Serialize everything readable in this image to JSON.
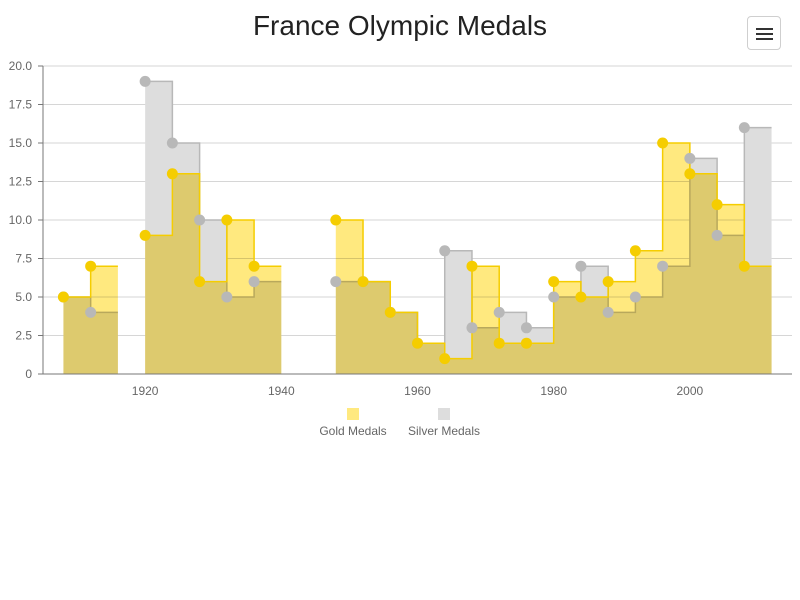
{
  "header": {
    "title": "France Olympic Medals",
    "menu_icon": "hamburger-menu-icon"
  },
  "colors": {
    "gold": "#f5cd00",
    "gold_fill": "#ffe97f",
    "silver": "#b8b8b8",
    "silver_fill": "#dddddd",
    "grid": "#d6d6d6",
    "axis": "#777777"
  },
  "chart_data": {
    "type": "area",
    "step": true,
    "title": "France Olympic Medals",
    "xlabel": "",
    "ylabel": "",
    "xlim": [
      1905,
      2015
    ],
    "ylim": [
      0,
      20
    ],
    "yticks": [
      "0",
      "2.5",
      "5.0",
      "7.5",
      "10.0",
      "12.5",
      "15.0",
      "17.5",
      "20.0"
    ],
    "xticks": [
      "1920",
      "1940",
      "1960",
      "1980",
      "2000"
    ],
    "grid": true,
    "legend": "bottom-center",
    "series": [
      {
        "name": "Gold Medals",
        "segments": [
          {
            "x": [
              1908,
              1912
            ],
            "y": [
              5,
              7
            ]
          },
          {
            "x": [
              1920,
              1924,
              1928,
              1932,
              1936
            ],
            "y": [
              9,
              13,
              6,
              10,
              7
            ]
          },
          {
            "x": [
              1948,
              1952,
              1956,
              1960,
              1964,
              1968,
              1972,
              1976,
              1980,
              1984,
              1988,
              1992,
              1996,
              2000,
              2004,
              2008
            ],
            "y": [
              10,
              6,
              4,
              2,
              1,
              7,
              2,
              2,
              6,
              5,
              6,
              8,
              15,
              13,
              11,
              7
            ]
          }
        ]
      },
      {
        "name": "Silver Medals",
        "segments": [
          {
            "x": [
              1908,
              1912
            ],
            "y": [
              5,
              4
            ]
          },
          {
            "x": [
              1920,
              1924,
              1928,
              1932,
              1936
            ],
            "y": [
              19,
              15,
              10,
              5,
              6
            ]
          },
          {
            "x": [
              1948,
              1952,
              1956,
              1960,
              1964,
              1968,
              1972,
              1976,
              1980,
              1984,
              1988,
              1992,
              1996,
              2000,
              2004,
              2008
            ],
            "y": [
              6,
              6,
              4,
              2,
              8,
              3,
              4,
              3,
              5,
              7,
              4,
              5,
              7,
              14,
              9,
              16
            ]
          }
        ]
      }
    ]
  }
}
